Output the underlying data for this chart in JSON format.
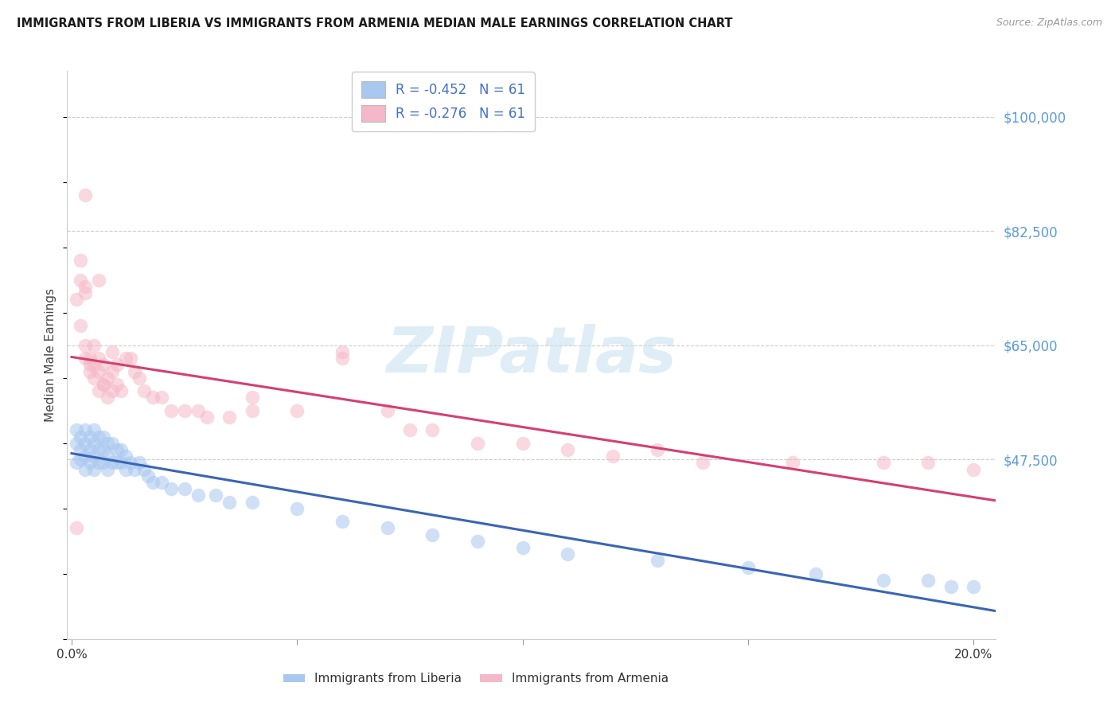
{
  "title": "IMMIGRANTS FROM LIBERIA VS IMMIGRANTS FROM ARMENIA MEDIAN MALE EARNINGS CORRELATION CHART",
  "source": "Source: ZipAtlas.com",
  "ylabel": "Median Male Earnings",
  "right_yticks": [
    100000,
    82500,
    65000,
    47500
  ],
  "right_ytick_labels": [
    "$100,000",
    "$82,500",
    "$65,000",
    "$47,500"
  ],
  "ylim": [
    20000,
    107000
  ],
  "xlim": [
    -0.001,
    0.205
  ],
  "legend_liberia": "R = -0.452   N = 61",
  "legend_armenia": "R = -0.276   N = 61",
  "color_liberia": "#a8c8f0",
  "color_armenia": "#f5b8c8",
  "color_liberia_line": "#3a65b5",
  "color_armenia_line": "#d44070",
  "color_right_axis": "#5b9bd5",
  "color_legend_text": "#4472c4",
  "watermark": "ZIPatlas",
  "liberia_x": [
    0.001,
    0.001,
    0.001,
    0.002,
    0.002,
    0.002,
    0.003,
    0.003,
    0.003,
    0.003,
    0.004,
    0.004,
    0.004,
    0.005,
    0.005,
    0.005,
    0.005,
    0.006,
    0.006,
    0.006,
    0.007,
    0.007,
    0.007,
    0.008,
    0.008,
    0.008,
    0.009,
    0.009,
    0.01,
    0.01,
    0.011,
    0.011,
    0.012,
    0.012,
    0.013,
    0.014,
    0.015,
    0.016,
    0.017,
    0.018,
    0.02,
    0.022,
    0.025,
    0.028,
    0.032,
    0.035,
    0.04,
    0.05,
    0.06,
    0.07,
    0.08,
    0.09,
    0.1,
    0.11,
    0.13,
    0.15,
    0.165,
    0.18,
    0.19,
    0.195,
    0.2
  ],
  "liberia_y": [
    52000,
    50000,
    47000,
    51000,
    49000,
    47500,
    52000,
    50000,
    48000,
    46000,
    51000,
    49000,
    47000,
    52000,
    50000,
    48000,
    46000,
    51000,
    49000,
    47000,
    51000,
    49000,
    47000,
    50000,
    48000,
    46000,
    50000,
    47000,
    49000,
    47000,
    49000,
    47000,
    48000,
    46000,
    47000,
    46000,
    47000,
    46000,
    45000,
    44000,
    44000,
    43000,
    43000,
    42000,
    42000,
    41000,
    41000,
    40000,
    38000,
    37000,
    36000,
    35000,
    34000,
    33000,
    32000,
    31000,
    30000,
    29000,
    29000,
    28000,
    28000
  ],
  "armenia_x": [
    0.001,
    0.001,
    0.002,
    0.002,
    0.003,
    0.003,
    0.003,
    0.004,
    0.004,
    0.005,
    0.005,
    0.005,
    0.006,
    0.006,
    0.006,
    0.007,
    0.007,
    0.008,
    0.008,
    0.009,
    0.009,
    0.01,
    0.01,
    0.011,
    0.012,
    0.013,
    0.014,
    0.015,
    0.016,
    0.018,
    0.02,
    0.022,
    0.025,
    0.028,
    0.03,
    0.035,
    0.04,
    0.05,
    0.06,
    0.07,
    0.075,
    0.08,
    0.09,
    0.1,
    0.11,
    0.12,
    0.13,
    0.14,
    0.16,
    0.18,
    0.19,
    0.2,
    0.003,
    0.006,
    0.009,
    0.04,
    0.06,
    0.003,
    0.004,
    0.007,
    0.002
  ],
  "armenia_y": [
    37000,
    72000,
    78000,
    68000,
    74000,
    65000,
    63000,
    63000,
    61000,
    65000,
    62000,
    60000,
    63000,
    61000,
    58000,
    62000,
    59000,
    60000,
    57000,
    61000,
    58000,
    62000,
    59000,
    58000,
    63000,
    63000,
    61000,
    60000,
    58000,
    57000,
    57000,
    55000,
    55000,
    55000,
    54000,
    54000,
    55000,
    55000,
    63000,
    55000,
    52000,
    52000,
    50000,
    50000,
    49000,
    48000,
    49000,
    47000,
    47000,
    47000,
    47000,
    46000,
    88000,
    75000,
    64000,
    57000,
    64000,
    73000,
    62000,
    59000,
    75000
  ]
}
